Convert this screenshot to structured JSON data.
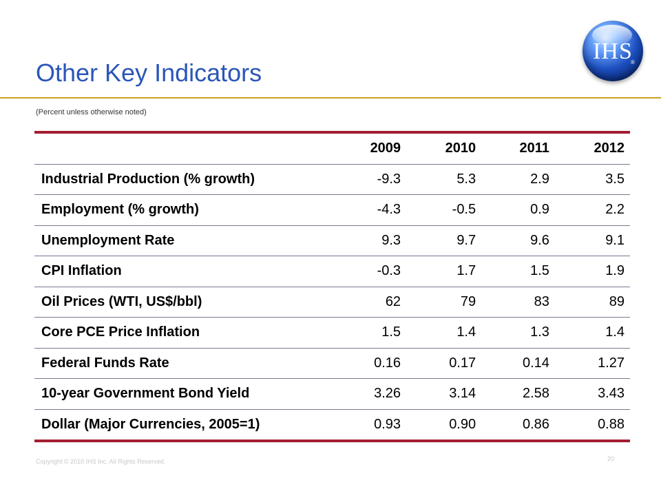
{
  "slide": {
    "title": "Other Key Indicators",
    "note": "(Percent unless otherwise noted)",
    "logo_text": "IHS",
    "logo_reg": "®",
    "footer": "Copyright © 2010 IHS Inc. All Rights Reserved.",
    "page_number": "20"
  },
  "table": {
    "header_blank": "",
    "years": [
      "2009",
      "2010",
      "2011",
      "2012"
    ],
    "rows": [
      {
        "label": "Industrial Production (% growth)",
        "values": [
          "-9.3",
          "5.3",
          "2.9",
          "3.5"
        ]
      },
      {
        "label": "Employment (% growth)",
        "values": [
          "-4.3",
          "-0.5",
          "0.9",
          "2.2"
        ]
      },
      {
        "label": "Unemployment Rate",
        "values": [
          "9.3",
          "9.7",
          "9.6",
          "9.1"
        ]
      },
      {
        "label": "CPI Inflation",
        "values": [
          "-0.3",
          "1.7",
          "1.5",
          "1.9"
        ]
      },
      {
        "label": "Oil Prices (WTI, US$/bbl)",
        "values": [
          "62",
          "79",
          "83",
          "89"
        ]
      },
      {
        "label": "Core PCE Price Inflation",
        "values": [
          "1.5",
          "1.4",
          "1.3",
          "1.4"
        ]
      },
      {
        "label": "Federal Funds Rate",
        "values": [
          "0.16",
          "0.17",
          "0.14",
          "1.27"
        ]
      },
      {
        "label": "10-year Government Bond Yield",
        "values": [
          "3.26",
          "3.14",
          "2.58",
          "3.43"
        ]
      },
      {
        "label": "Dollar (Major Currencies, 2005=1)",
        "values": [
          "0.93",
          "0.90",
          "0.86",
          "0.88"
        ]
      }
    ]
  },
  "colors": {
    "title": "#2a56b8",
    "rule": "#c9a227",
    "table_border": "#a31d32",
    "row_divider": "#7a7590"
  }
}
